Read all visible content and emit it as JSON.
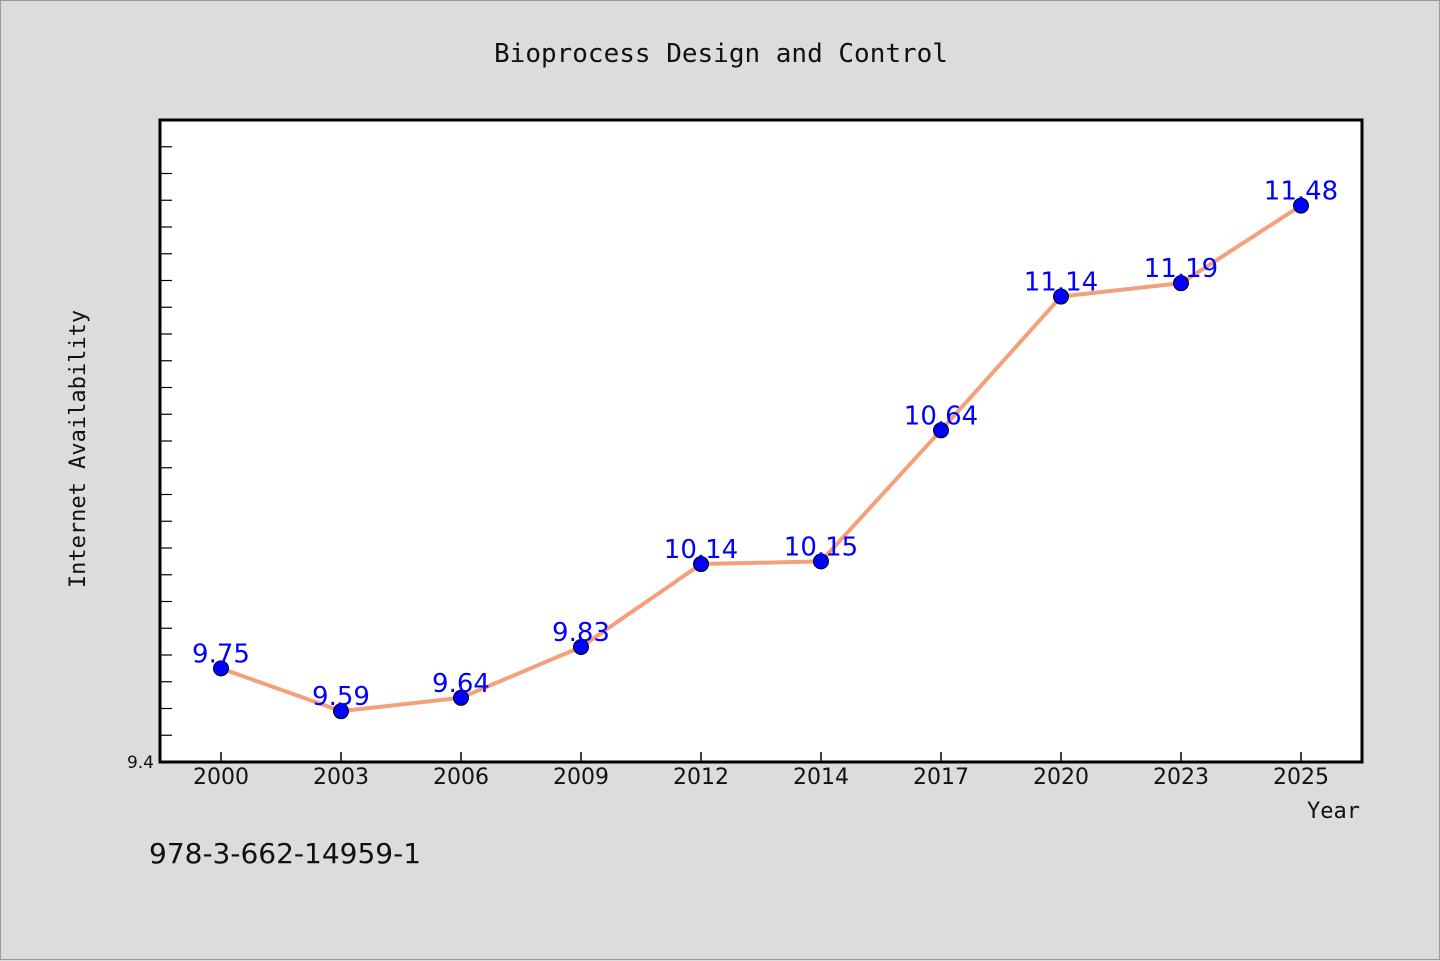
{
  "chart_data": {
    "type": "line",
    "title": "Bioprocess Design and Control",
    "xlabel": "Year",
    "ylabel": "Internet Availability",
    "categories": [
      "2000",
      "2003",
      "2006",
      "2009",
      "2012",
      "2014",
      "2017",
      "2020",
      "2023",
      "2025"
    ],
    "series": [
      {
        "values": [
          9.75,
          9.59,
          9.64,
          9.83,
          10.14,
          10.15,
          10.64,
          11.14,
          11.19,
          11.48
        ],
        "labels": [
          "9.75",
          "9.59",
          "9.64",
          "9.83",
          "10.14",
          "10.15",
          "10.64",
          "11.14",
          "11.19",
          "11.48"
        ],
        "line_color": "#f4a07a",
        "marker_color": "#0000ff"
      }
    ],
    "ylim": [
      9.4,
      11.8
    ],
    "yticks_labeled": [
      "9.4"
    ],
    "grid": false,
    "legend": "none",
    "data_label_color": "#0000ff"
  },
  "footer": {
    "isbn": "978-3-662-14959-1"
  }
}
